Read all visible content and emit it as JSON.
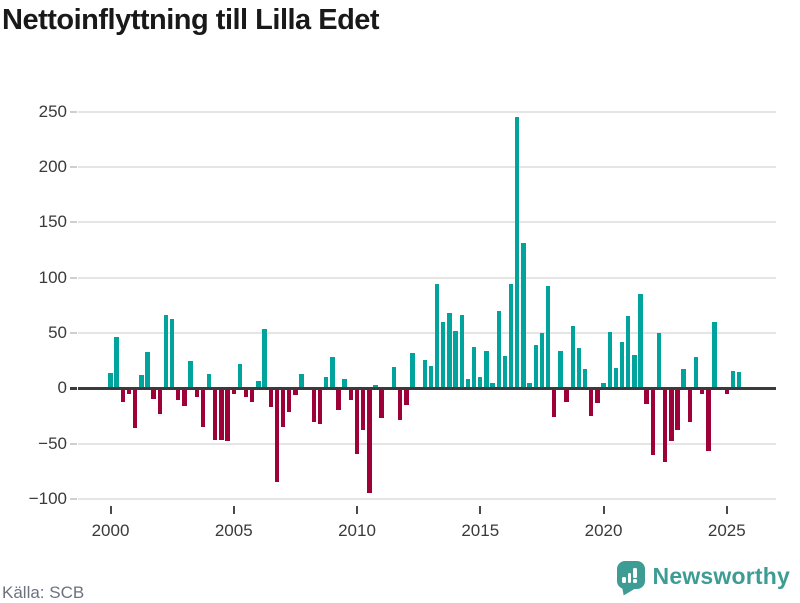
{
  "header": {
    "title": "Nettoinflyttning till Lilla Edet"
  },
  "footer": {
    "source_label": "Källa: SCB",
    "brand": {
      "name": "Newsworthy",
      "icon": "newsworthy-speech-bubble-bar-chart-icon"
    }
  },
  "chart_data": {
    "type": "bar",
    "title": "Nettoinflyttning till Lilla Edet",
    "frequency": "quarterly",
    "x_start": "2000-Q1",
    "x_end": "2025-Q3",
    "values": [
      14,
      46,
      -12,
      -5,
      -36,
      12,
      33,
      -10,
      -23,
      66,
      63,
      -11,
      -16,
      25,
      -8,
      -35,
      13,
      -47,
      -47,
      -48,
      -5,
      22,
      -8,
      -12,
      7,
      54,
      -17,
      -85,
      -35,
      -21,
      -6,
      13,
      0,
      -30,
      -32,
      10,
      28,
      -20,
      8,
      -11,
      -59,
      -38,
      -95,
      3,
      -27,
      0,
      19,
      -29,
      -15,
      32,
      0,
      26,
      20,
      94,
      60,
      68,
      52,
      66,
      8,
      37,
      10,
      34,
      5,
      70,
      29,
      94,
      245,
      131,
      5,
      39,
      50,
      92,
      -26,
      34,
      -12,
      56,
      36,
      17,
      -25,
      -13,
      5,
      51,
      18,
      42,
      65,
      30,
      85,
      -14,
      -60,
      50,
      -67,
      -48,
      -38,
      17,
      -30,
      28,
      -5,
      -57,
      60,
      0,
      -5,
      16,
      15
    ],
    "x_tick_labels": [
      "2000",
      "2005",
      "2010",
      "2015",
      "2020",
      "2025"
    ],
    "x_tick_indices": [
      0,
      20,
      40,
      60,
      80,
      100
    ],
    "y_tick_labels": [
      "250",
      "200",
      "150",
      "100",
      "50",
      "0",
      "−50",
      "−100"
    ],
    "y_ticks": [
      250,
      200,
      150,
      100,
      50,
      0,
      -50,
      -100
    ],
    "ylim": [
      -100,
      250
    ],
    "grid": "horizontal",
    "legend": "none",
    "positive_color": "#00a49c",
    "negative_color": "#9e0038",
    "zero_line_color": "#3b3b3b"
  }
}
